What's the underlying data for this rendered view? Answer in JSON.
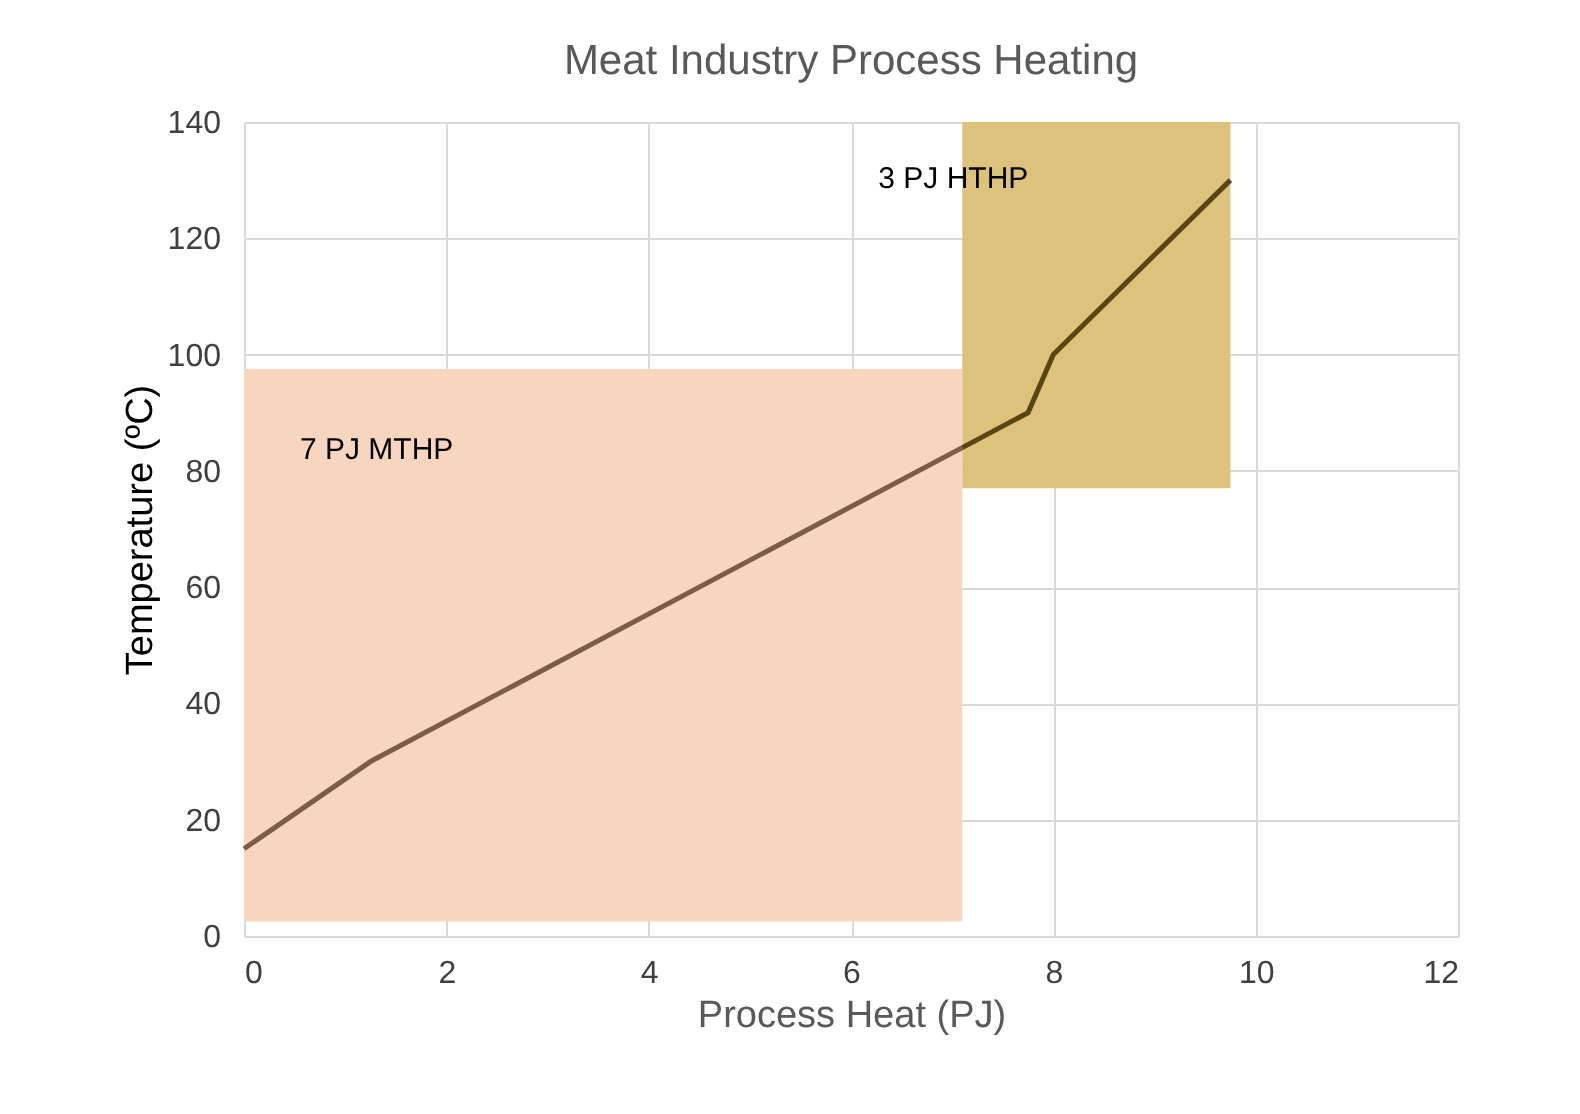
{
  "chart_data": {
    "type": "line",
    "title": "Meat  Industry Process Heating",
    "xlabel": "Process Heat (PJ)",
    "ylabel": "Temperature (ºC)",
    "xlim": [
      0,
      12
    ],
    "xticks": [
      0,
      2,
      4,
      6,
      8,
      10,
      12
    ],
    "ylim": [
      0,
      140
    ],
    "yticks": [
      0,
      20,
      40,
      60,
      80,
      100,
      120,
      140
    ],
    "grid": true,
    "series": [
      {
        "color": "#7f5b43",
        "x": [
          0,
          1.25,
          7.1
        ],
        "values": [
          15,
          30,
          84
        ]
      },
      {
        "color": "#5a4414",
        "x": [
          7.1,
          7.75,
          8,
          9.75
        ],
        "values": [
          84,
          90,
          100,
          130
        ]
      }
    ],
    "bands": [
      {
        "axis": "x",
        "from": 0,
        "to": 7.1,
        "color": "#f8d5bf",
        "label": "7 PJ  MTHP"
      },
      {
        "axis": "x",
        "from": 7.1,
        "to": 9.75,
        "color": "#dcc27a",
        "label": "3 PJ HTHP"
      }
    ]
  }
}
